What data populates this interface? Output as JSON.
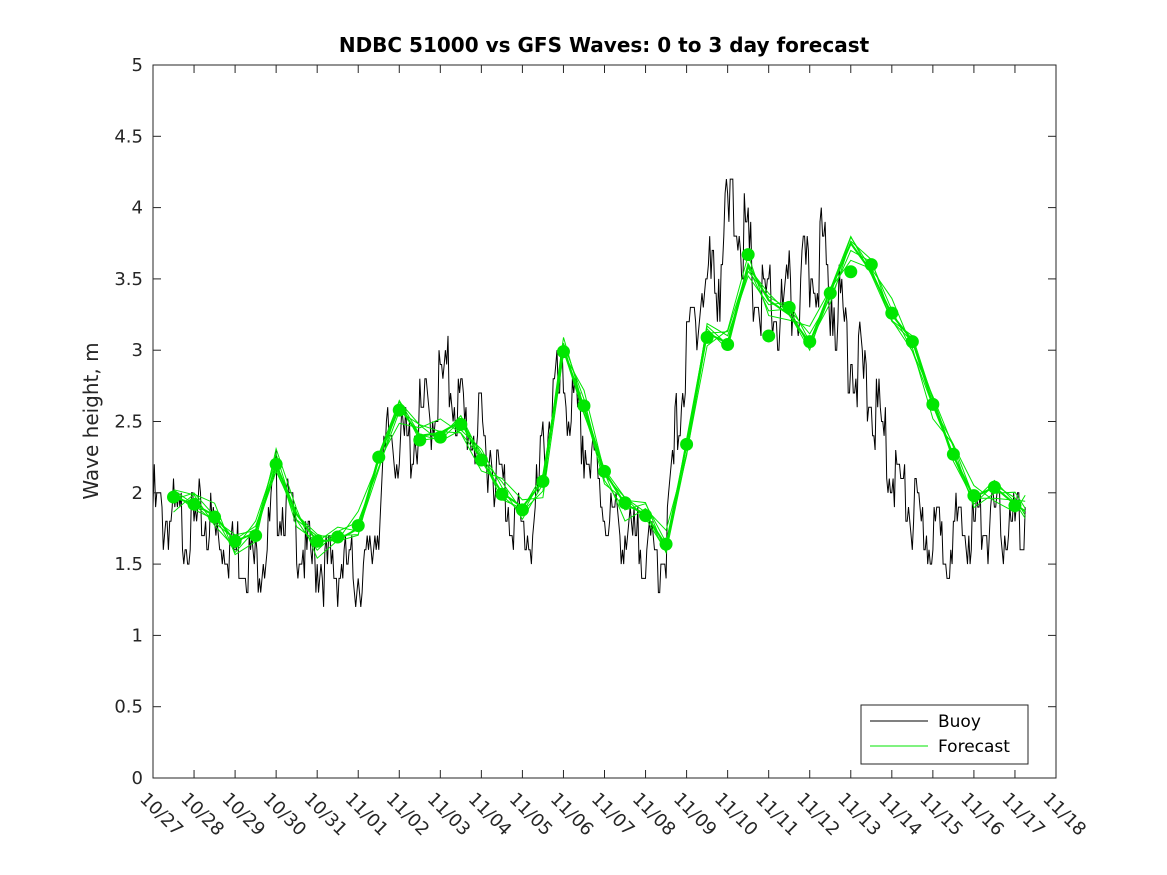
{
  "chart_data": {
    "type": "line",
    "title": "NDBC 51000 vs GFS Waves: 0 to 3 day forecast",
    "xlabel": "",
    "ylabel": "Wave height, m",
    "xlim": [
      "10/27",
      "11/18"
    ],
    "ylim": [
      0,
      5
    ],
    "grid": false,
    "legend_position": "bottom-right",
    "x_tick_labels": [
      "10/27",
      "10/28",
      "10/29",
      "10/30",
      "10/31",
      "11/01",
      "11/02",
      "11/03",
      "11/04",
      "11/05",
      "11/06",
      "11/07",
      "11/08",
      "11/09",
      "11/10",
      "11/11",
      "11/12",
      "11/13",
      "11/14",
      "11/15",
      "11/16",
      "11/17",
      "11/18"
    ],
    "y_ticks": [
      0,
      0.5,
      1,
      1.5,
      2,
      2.5,
      3,
      3.5,
      4,
      4.5,
      5
    ],
    "y_tick_labels": [
      "0",
      "0.5",
      "1",
      "1.5",
      "2",
      "2.5",
      "3",
      "3.5",
      "4",
      "4.5",
      "5"
    ],
    "colors": {
      "buoy": "#000000",
      "forecast": "#00e600"
    },
    "series": [
      {
        "name": "Buoy",
        "x_days": [
          0,
          0.25,
          0.5,
          0.75,
          1,
          1.25,
          1.5,
          1.75,
          2,
          2.25,
          2.5,
          2.75,
          3,
          3.25,
          3.5,
          3.75,
          4,
          4.25,
          4.5,
          4.75,
          5,
          5.25,
          5.5,
          5.75,
          6,
          6.25,
          6.5,
          6.75,
          7,
          7.25,
          7.5,
          7.75,
          8,
          8.25,
          8.5,
          8.75,
          9,
          9.25,
          9.5,
          9.75,
          10,
          10.25,
          10.5,
          10.75,
          11,
          11.25,
          11.5,
          11.75,
          12,
          12.25,
          12.5,
          12.75,
          13,
          13.25,
          13.5,
          13.75,
          14,
          14.25,
          14.5,
          14.75,
          15,
          15.25,
          15.5,
          15.75,
          16,
          16.25,
          16.5,
          16.75,
          17,
          17.25,
          17.5,
          17.75,
          18,
          18.25,
          18.5,
          18.75,
          19,
          19.25,
          19.5,
          19.75,
          20,
          20.25,
          20.5,
          20.75,
          21,
          21.25
        ],
        "values": [
          2.05,
          1.95,
          1.95,
          1.9,
          1.9,
          1.95,
          1.85,
          1.8,
          1.75,
          1.7,
          1.65,
          1.75,
          2.15,
          2.05,
          1.85,
          1.7,
          1.65,
          1.6,
          1.6,
          1.6,
          1.55,
          1.6,
          2.0,
          2.55,
          2.5,
          2.45,
          2.65,
          2.7,
          2.9,
          2.95,
          2.7,
          2.6,
          2.55,
          2.4,
          2.2,
          2.0,
          1.85,
          1.8,
          2.45,
          2.8,
          2.9,
          2.7,
          2.5,
          2.3,
          2.05,
          1.9,
          1.85,
          1.75,
          1.75,
          1.65,
          1.75,
          2.6,
          3.1,
          3.5,
          3.65,
          3.7,
          4.1,
          4.2,
          3.8,
          3.5,
          3.45,
          3.4,
          3.5,
          3.6,
          3.7,
          3.9,
          3.6,
          3.45,
          3.15,
          3.0,
          2.8,
          2.6,
          2.3,
          2.15,
          2.0,
          1.85,
          1.85,
          1.8,
          1.85,
          1.85,
          1.9,
          1.95,
          1.9,
          1.9,
          1.9,
          1.9
        ]
      },
      {
        "name": "Forecast",
        "x_days": [
          0.5,
          1,
          1.5,
          2,
          2.5,
          3,
          3.5,
          4,
          4.5,
          5,
          5.5,
          6,
          6.5,
          7,
          7.5,
          8,
          8.5,
          9,
          9.5,
          10,
          10.5,
          11,
          11.5,
          12,
          12.5,
          13,
          13.5,
          14,
          14.5,
          15,
          15.5,
          16,
          16.5,
          17,
          17.5,
          18,
          18.5,
          19,
          19.5,
          20,
          20.5,
          21,
          21.25
        ],
        "values": [
          1.97,
          1.92,
          1.84,
          1.66,
          1.72,
          2.2,
          1.85,
          1.66,
          1.67,
          1.75,
          2.25,
          2.6,
          2.4,
          2.42,
          2.5,
          2.23,
          2.0,
          1.9,
          2.08,
          3.0,
          2.6,
          2.15,
          1.92,
          1.85,
          1.63,
          2.34,
          3.12,
          3.05,
          3.6,
          3.35,
          3.25,
          3.05,
          3.42,
          3.75,
          3.55,
          3.25,
          3.07,
          2.62,
          2.26,
          1.97,
          2.04,
          1.92,
          1.87
        ]
      }
    ],
    "markers": {
      "x_days": [
        0.5,
        1,
        1.5,
        2,
        2.5,
        3,
        4,
        4.5,
        5,
        5.5,
        6,
        6.5,
        7,
        7.5,
        8,
        8.5,
        9,
        9.5,
        10,
        10.5,
        11,
        11.5,
        12,
        12.5,
        13,
        13.5,
        14,
        14.5,
        15,
        15.5,
        16,
        16.5,
        17,
        17.5,
        18,
        18.5,
        19,
        19.5,
        20,
        20.5,
        21
      ],
      "values": [
        1.97,
        1.92,
        1.83,
        1.66,
        1.7,
        2.2,
        1.66,
        1.69,
        1.77,
        2.25,
        2.58,
        2.37,
        2.39,
        2.48,
        2.23,
        1.99,
        1.88,
        2.08,
        2.99,
        2.61,
        2.15,
        1.93,
        1.84,
        1.64,
        2.34,
        3.09,
        3.04,
        3.67,
        3.1,
        3.3,
        3.06,
        3.4,
        3.55,
        3.6,
        3.26,
        3.06,
        2.62,
        2.27,
        1.98,
        2.04,
        1.91
      ]
    },
    "legend": [
      {
        "label": "Buoy",
        "color": "#000000"
      },
      {
        "label": "Forecast",
        "color": "#00e600"
      }
    ]
  }
}
